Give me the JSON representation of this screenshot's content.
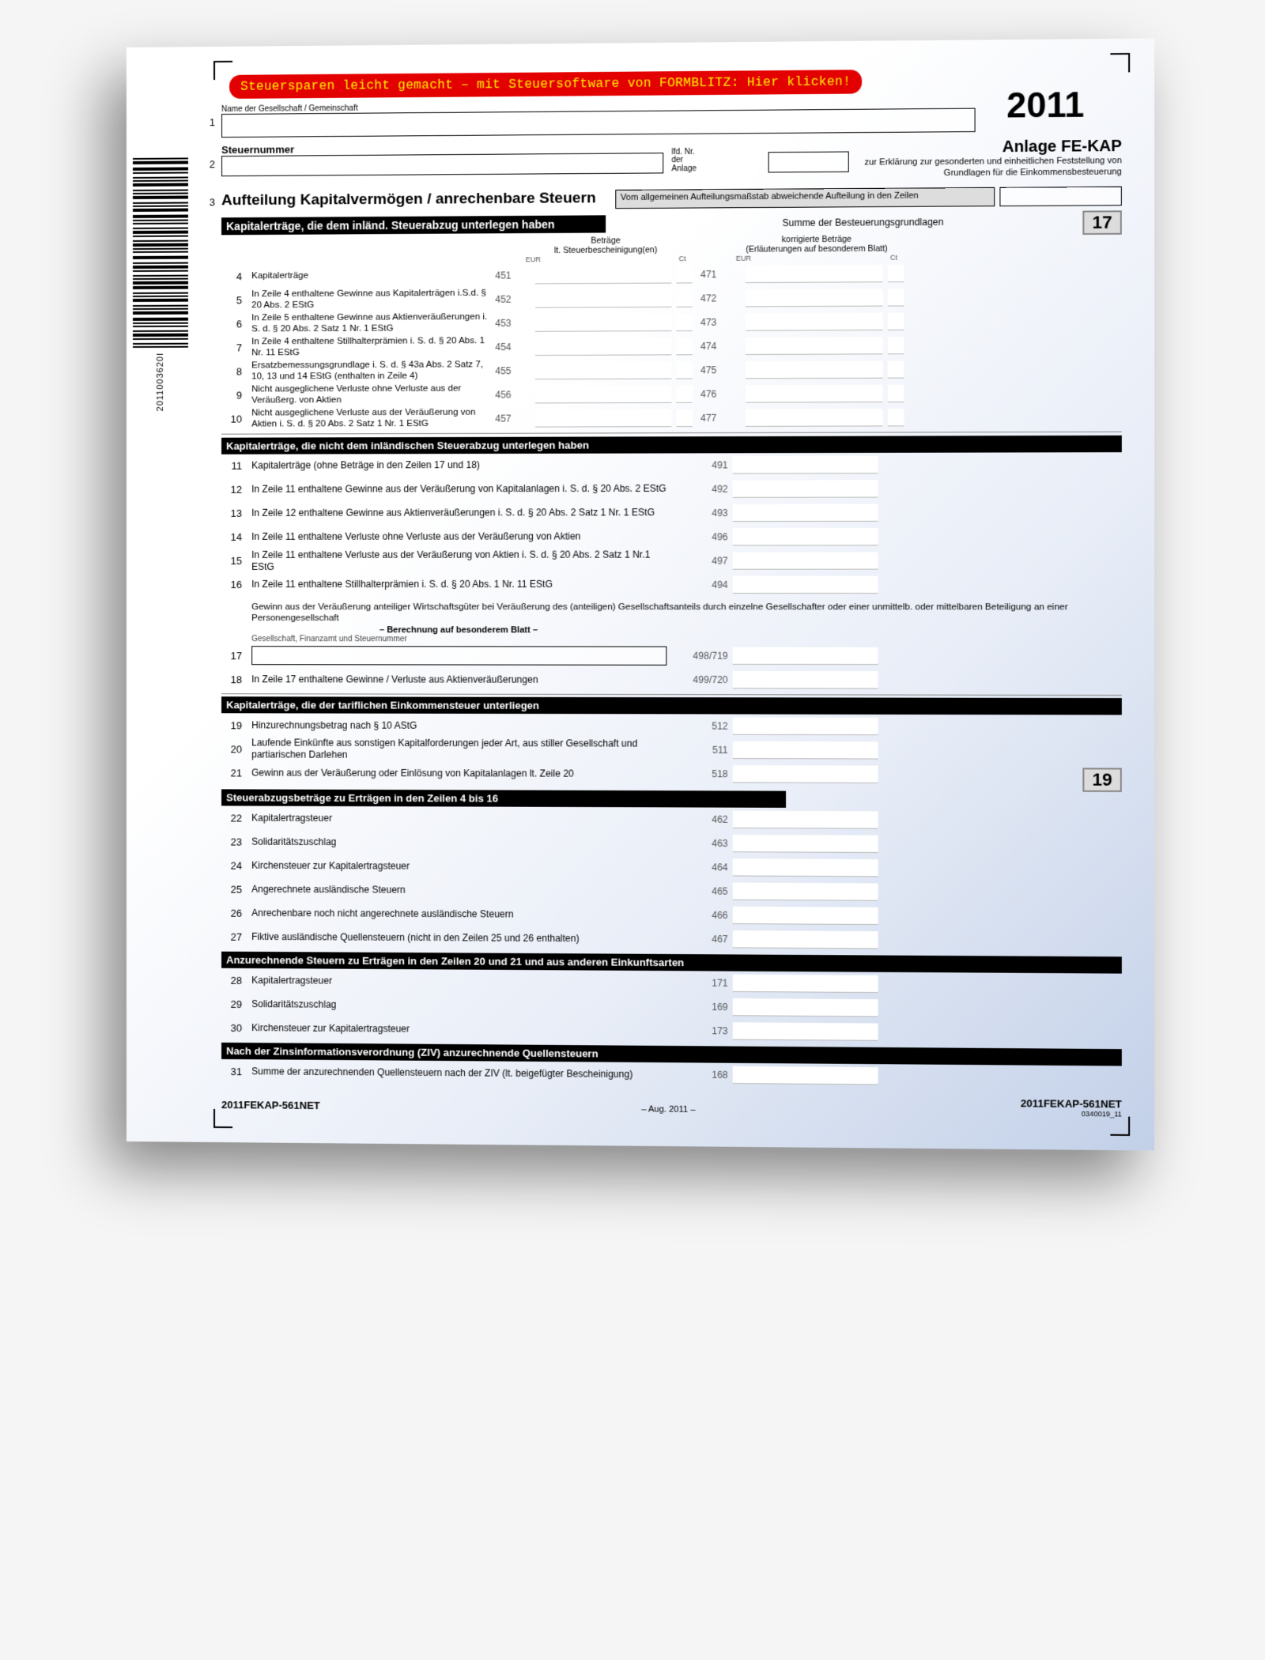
{
  "banner": "Steuersparen leicht gemacht – mit Steuersoftware von FORMBLITZ: Hier klicken!",
  "year": "2011",
  "barcode_label": "2011003620I",
  "name_label": "Name der Gesellschaft / Gemeinschaft",
  "steuernummer_label": "Steuernummer",
  "lfd_label": "lfd. Nr.\nder\nAnlage",
  "anlage_title": "Anlage FE-KAP",
  "anlage_desc": "zur Erklärung zur gesonderten und einheitlichen Feststellung von Grundlagen für die Einkommensbesteuerung",
  "form_title": "Aufteilung Kapitalvermögen / anrechenbare Steuern",
  "gray_note": "Vom allgemeinen Aufteilungsmaßstab abweichende Aufteilung in den Zeilen",
  "summe_label": "Summe der Besteuerungsgrundlagen",
  "box17": "17",
  "box19": "19",
  "sec_a": "Kapitalerträge, die dem inländ. Steuerabzug unterlegen haben",
  "col_a_head": "Beträge\nlt. Steuerbescheinigung(en)",
  "col_b_head": "korrigierte Beträge\n(Erläuterungen auf besonderem Blatt)",
  "eur": "EUR",
  "ct": "Ct",
  "rows_a": [
    {
      "n": "4",
      "desc": "Kapitalerträge",
      "c1": "451",
      "c2": "471"
    },
    {
      "n": "5",
      "desc": "In Zeile 4 enthaltene Gewinne aus Kapitalerträgen i.S.d. § 20 Abs. 2 EStG",
      "c1": "452",
      "c2": "472"
    },
    {
      "n": "6",
      "desc": "In Zeile 5 enthaltene Gewinne aus Aktienveräußerungen i. S. d. § 20 Abs. 2 Satz 1 Nr. 1 EStG",
      "c1": "453",
      "c2": "473"
    },
    {
      "n": "7",
      "desc": "In Zeile 4 enthaltene Stillhalterprämien i. S. d. § 20 Abs. 1 Nr. 11 EStG",
      "c1": "454",
      "c2": "474"
    },
    {
      "n": "8",
      "desc": "Ersatzbemessungsgrundlage i. S. d. § 43a Abs. 2 Satz 7, 10, 13 und 14 EStG (enthalten in Zeile 4)",
      "c1": "455",
      "c2": "475"
    },
    {
      "n": "9",
      "desc": "Nicht ausgeglichene Verluste ohne Verluste aus der Veräußerg. von Aktien",
      "c1": "456",
      "c2": "476"
    },
    {
      "n": "10",
      "desc": "Nicht ausgeglichene Verluste aus der Veräußerung von Aktien i. S. d. § 20 Abs. 2 Satz 1 Nr. 1 EStG",
      "c1": "457",
      "c2": "477"
    }
  ],
  "sec_b": "Kapitalerträge, die nicht dem inländischen Steuerabzug unterlegen haben",
  "rows_b": [
    {
      "n": "11",
      "desc": "Kapitalerträge (ohne Beträge in den Zeilen 17 und 18)",
      "c": "491"
    },
    {
      "n": "12",
      "desc": "In Zeile 11 enthaltene Gewinne aus der Veräußerung von Kapitalanlagen i. S. d. § 20 Abs. 2 EStG",
      "c": "492"
    },
    {
      "n": "13",
      "desc": "In Zeile 12 enthaltene Gewinne aus Aktienveräußerungen i. S. d. § 20 Abs. 2 Satz 1 Nr. 1 EStG",
      "c": "493"
    },
    {
      "n": "14",
      "desc": "In Zeile 11 enthaltene Verluste ohne Verluste aus der Veräußerung von Aktien",
      "c": "496"
    },
    {
      "n": "15",
      "desc": "In Zeile 11 enthaltene Verluste aus der Veräußerung von Aktien i. S. d. § 20 Abs. 2 Satz 1 Nr.1 EStG",
      "c": "497"
    },
    {
      "n": "16",
      "desc": "In Zeile 11 enthaltene Stillhalterprämien i. S. d. § 20 Abs. 1 Nr. 11 EStG",
      "c": "494"
    }
  ],
  "gewinn_text": "Gewinn aus der Veräußerung anteiliger Wirtschaftsgüter bei Veräußerung des (anteiligen) Gesellschaftsanteils durch einzelne Gesellschafter oder einer unmittelb. oder mittelbaren Beteiligung an einer Personengesellschaft",
  "berechnung": "– Berechnung auf besonderem Blatt –",
  "gesellschaft_label": "Gesellschaft, Finanzamt und Steuernummer",
  "row17": {
    "n": "17",
    "c": "498/719"
  },
  "row18": {
    "n": "18",
    "desc": "In Zeile 17 enthaltene Gewinne / Verluste aus Aktienveräußerungen",
    "c": "499/720"
  },
  "sec_c": "Kapitalerträge, die der tariflichen Einkommensteuer unterliegen",
  "rows_c": [
    {
      "n": "19",
      "desc": "Hinzurechnungsbetrag nach § 10 AStG",
      "c": "512"
    },
    {
      "n": "20",
      "desc": "Laufende Einkünfte aus sonstigen Kapitalforderungen jeder Art, aus stiller Gesellschaft und partiarischen Darlehen",
      "c": "511"
    },
    {
      "n": "21",
      "desc": "Gewinn aus der Veräußerung oder Einlösung von Kapitalanlagen lt. Zeile 20",
      "c": "518"
    }
  ],
  "sec_d": "Steuerabzugsbeträge zu Erträgen in den Zeilen 4 bis 16",
  "rows_d": [
    {
      "n": "22",
      "desc": "Kapitalertragsteuer",
      "c": "462"
    },
    {
      "n": "23",
      "desc": "Solidaritätszuschlag",
      "c": "463"
    },
    {
      "n": "24",
      "desc": "Kirchensteuer zur Kapitalertragsteuer",
      "c": "464"
    },
    {
      "n": "25",
      "desc": "Angerechnete ausländische Steuern",
      "c": "465"
    },
    {
      "n": "26",
      "desc": "Anrechenbare noch nicht angerechnete ausländische Steuern",
      "c": "466"
    },
    {
      "n": "27",
      "desc": "Fiktive ausländische Quellensteuern (nicht in den Zeilen 25 und 26 enthalten)",
      "c": "467"
    }
  ],
  "sec_e": "Anzurechnende Steuern zu Erträgen in den Zeilen 20 und 21 und aus anderen Einkunftsarten",
  "rows_e": [
    {
      "n": "28",
      "desc": "Kapitalertragsteuer",
      "c": "171"
    },
    {
      "n": "29",
      "desc": "Solidaritätszuschlag",
      "c": "169"
    },
    {
      "n": "30",
      "desc": "Kirchensteuer zur Kapitalertragsteuer",
      "c": "173"
    }
  ],
  "sec_f": "Nach der Zinsinformationsverordnung (ZIV) anzurechnende Quellensteuern",
  "row31": {
    "n": "31",
    "desc": "Summe der anzurechnenden Quellensteuern nach der ZIV (lt. beigefügter Bescheinigung)",
    "c": "168"
  },
  "footer_left": "2011FEKAP-561NET",
  "footer_mid": "– Aug. 2011 –",
  "footer_right": "2011FEKAP-561NET",
  "footer_right_sub": "0340019_11"
}
